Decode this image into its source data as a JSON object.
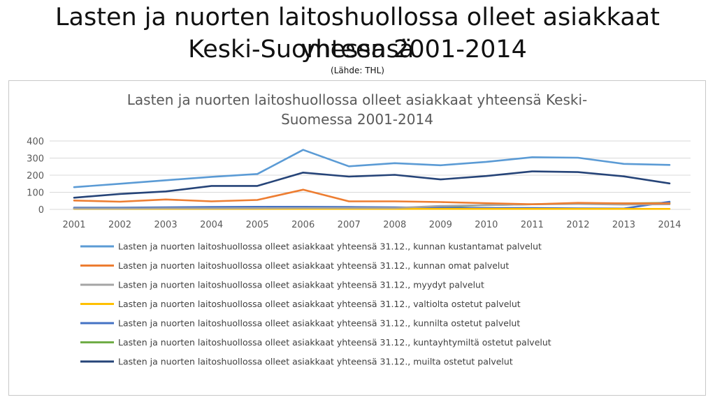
{
  "slide": {
    "title_line1": "Lasten ja nuorten laitoshuollossa olleet asiakkaat yhteensä",
    "title_line2": "Keski-Suomessa 2001-2014",
    "source": "(Lähde: THL)"
  },
  "chart_data": {
    "type": "line",
    "title_lines": [
      "Lasten ja nuorten laitoshuollossa olleet asiakkaat yhteensä Keski-",
      "Suomessa 2001-2014"
    ],
    "x": [
      "2001",
      "2002",
      "2003",
      "2004",
      "2005",
      "2006",
      "2007",
      "2008",
      "2009",
      "2010",
      "2011",
      "2012",
      "2013",
      "2014"
    ],
    "ylim": [
      0,
      400
    ],
    "yticks": [
      0,
      100,
      200,
      300,
      400
    ],
    "grid": true,
    "legend_position": "bottom",
    "series": [
      {
        "name": "Lasten ja nuorten laitoshuollossa olleet asiakkaat yhteensä 31.12., kunnan kustantamat palvelut",
        "color": "#5b9bd5",
        "values": [
          130,
          150,
          170,
          190,
          207,
          348,
          252,
          270,
          258,
          278,
          305,
          302,
          266,
          260
        ]
      },
      {
        "name": "Lasten ja nuorten laitoshuollossa olleet asiakkaat yhteensä 31.12., kunnan omat palvelut",
        "color": "#ed7d31",
        "values": [
          52,
          45,
          58,
          47,
          55,
          115,
          47,
          47,
          43,
          36,
          30,
          38,
          35,
          35
        ]
      },
      {
        "name": "Lasten ja nuorten laitoshuollossa olleet asiakkaat yhteensä 31.12., myydyt palvelut",
        "color": "#a5a5a5",
        "values": [
          5,
          5,
          6,
          6,
          7,
          8,
          8,
          8,
          20,
          25,
          30,
          32,
          28,
          30
        ]
      },
      {
        "name": "Lasten ja nuorten laitoshuollossa olleet asiakkaat yhteensä 31.12., valtiolta ostetut palvelut",
        "color": "#ffc000",
        "values": [
          3,
          3,
          3,
          3,
          3,
          3,
          3,
          3,
          3,
          3,
          3,
          3,
          3,
          3
        ]
      },
      {
        "name": "Lasten ja nuorten laitoshuollossa olleet asiakkaat yhteensä 31.12., kunnilta ostetut palvelut",
        "color": "#4472c4",
        "values": [
          10,
          10,
          12,
          14,
          15,
          15,
          14,
          12,
          10,
          8,
          8,
          6,
          5,
          45
        ]
      },
      {
        "name": "Lasten ja nuorten laitoshuollossa olleet asiakkaat yhteensä 31.12., kuntayhtymiltä ostetut palvelut",
        "color": "#70ad47",
        "values": [
          5,
          6,
          6,
          8,
          8,
          8,
          6,
          6,
          15,
          25,
          30,
          35,
          35,
          38
        ]
      },
      {
        "name": "Lasten ja nuorten laitoshuollossa olleet asiakkaat yhteensä 31.12., muilta ostetut palvelut",
        "color": "#264478",
        "values": [
          68,
          90,
          105,
          137,
          137,
          215,
          192,
          202,
          175,
          195,
          222,
          218,
          193,
          152
        ]
      }
    ]
  }
}
